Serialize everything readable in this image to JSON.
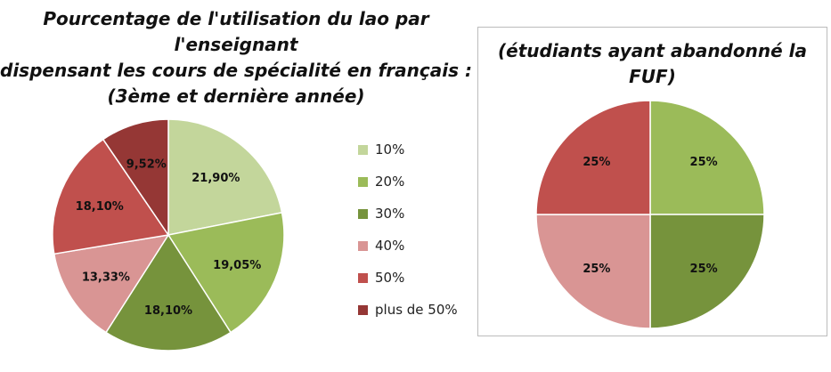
{
  "chart_data": [
    {
      "type": "pie",
      "title": "Pourcentage de l'utilisation du lao par l'enseignant dispensant les cours de spécialité en français : (3ème et dernière année)",
      "title_lines": [
        "Pourcentage de l'utilisation du lao par l'enseignant",
        "dispensant les cours de spécialité en français :",
        "(3ème et dernière année)"
      ],
      "categories": [
        "10%",
        "20%",
        "30%",
        "40%",
        "50%",
        "plus de 50%"
      ],
      "values": [
        21.9,
        19.05,
        18.1,
        13.33,
        18.1,
        9.52
      ],
      "data_labels": [
        "21,90%",
        "19,05%",
        "18,10%",
        "13,33%",
        "18,10%",
        "9,52%"
      ],
      "colors": [
        "#c3d69b",
        "#9bbb59",
        "#76933c",
        "#d99594",
        "#c0504d",
        "#953735"
      ],
      "legend_position": "right"
    },
    {
      "type": "pie",
      "title": "(étudiants ayant abandonné la FUF)",
      "title_lines": [
        "(étudiants ayant abandonné la FUF)"
      ],
      "values": [
        25,
        25,
        25,
        25
      ],
      "data_labels": [
        "25%",
        "25%",
        "25%",
        "25%"
      ],
      "colors": [
        "#9bbb59",
        "#76933c",
        "#d99594",
        "#c0504d"
      ],
      "legend_position": "none"
    }
  ]
}
